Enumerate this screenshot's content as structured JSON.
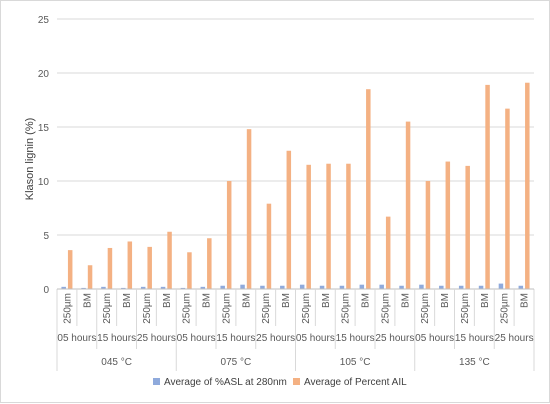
{
  "chart_data": {
    "type": "bar",
    "ylabel": "Klason lignin (%)",
    "xlabel": "",
    "ylim": [
      0,
      25
    ],
    "yticks": [
      0,
      5,
      10,
      15,
      20,
      25
    ],
    "grid": "horizontal",
    "legend_position": "bottom",
    "axis_levels": {
      "temperatures": [
        "045 °C",
        "075 °C",
        "105 °C",
        "135 °C"
      ],
      "times": [
        "05 hours",
        "15 hours",
        "25 hours"
      ],
      "samples": [
        "250µm",
        "BM"
      ]
    },
    "categories": [
      "045 °C | 05 hours | 250µm",
      "045 °C | 05 hours | BM",
      "045 °C | 15 hours | 250µm",
      "045 °C | 15 hours | BM",
      "045 °C | 25 hours | 250µm",
      "045 °C | 25 hours | BM",
      "075 °C | 05 hours | 250µm",
      "075 °C | 05 hours | BM",
      "075 °C | 15 hours | 250µm",
      "075 °C | 15 hours | BM",
      "075 °C | 25 hours | 250µm",
      "075 °C | 25 hours | BM",
      "105 °C | 05 hours | 250µm",
      "105 °C | 05 hours | BM",
      "105 °C | 15 hours | 250µm",
      "105 °C | 15 hours | BM",
      "105 °C | 25 hours | 250µm",
      "105 °C | 25 hours | BM",
      "135 °C | 05 hours | 250µm",
      "135 °C | 05 hours | BM",
      "135 °C | 15 hours | 250µm",
      "135 °C | 15 hours | BM",
      "135 °C | 25 hours | 250µm",
      "135 °C | 25 hours | BM"
    ],
    "series": [
      {
        "name": "Average of %ASL at 280nm",
        "color": "#8faadc",
        "values": [
          0.2,
          0.1,
          0.2,
          0.1,
          0.2,
          0.2,
          0.1,
          0.2,
          0.3,
          0.4,
          0.3,
          0.3,
          0.4,
          0.3,
          0.3,
          0.4,
          0.4,
          0.3,
          0.4,
          0.3,
          0.3,
          0.3,
          0.5,
          0.3
        ]
      },
      {
        "name": "Average of Percent AIL",
        "color": "#f4b183",
        "values": [
          3.6,
          2.2,
          3.8,
          4.4,
          3.9,
          5.3,
          3.4,
          4.7,
          10.0,
          14.8,
          7.9,
          12.8,
          11.5,
          11.6,
          11.6,
          18.5,
          6.7,
          15.5,
          10.0,
          11.8,
          11.4,
          18.9,
          16.7,
          19.1
        ]
      }
    ]
  }
}
